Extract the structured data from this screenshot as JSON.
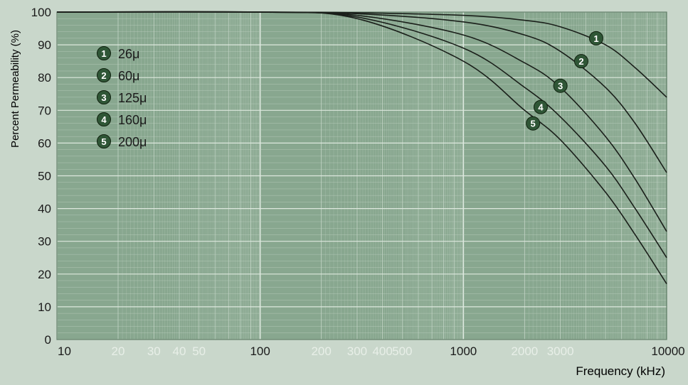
{
  "chart_data": {
    "type": "line",
    "title": "",
    "xlabel": "Frequency (kHz)",
    "ylabel": "Percent Permeability (%)",
    "x_scale": "log",
    "xlim": [
      10,
      10000
    ],
    "ylim": [
      0,
      100
    ],
    "x_ticks": [
      {
        "value": 10,
        "label": "10",
        "major": true
      },
      {
        "value": 20,
        "label": "20",
        "major": false
      },
      {
        "value": 30,
        "label": "30",
        "major": false
      },
      {
        "value": 40,
        "label": "40",
        "major": false
      },
      {
        "value": 50,
        "label": "50",
        "major": false
      },
      {
        "value": 100,
        "label": "100",
        "major": true
      },
      {
        "value": 200,
        "label": "200",
        "major": false
      },
      {
        "value": 300,
        "label": "300",
        "major": false
      },
      {
        "value": 400,
        "label": "400",
        "major": false
      },
      {
        "value": 500,
        "label": "500",
        "major": false
      },
      {
        "value": 1000,
        "label": "1000",
        "major": true
      },
      {
        "value": 2000,
        "label": "2000",
        "major": false
      },
      {
        "value": 3000,
        "label": "3000",
        "major": false
      },
      {
        "value": 10000,
        "label": "10000",
        "major": true
      }
    ],
    "y_ticks": [
      0,
      10,
      20,
      30,
      40,
      50,
      60,
      70,
      80,
      90,
      100
    ],
    "grid": true,
    "legend_position": "top-left",
    "series": [
      {
        "name": "26μ",
        "marker": "1",
        "x": [
          10,
          100,
          300,
          1000,
          2000,
          3000,
          5000,
          7000,
          10000
        ],
        "y": [
          100,
          100,
          99.8,
          99,
          97.5,
          95.5,
          90,
          83,
          74
        ]
      },
      {
        "name": "60μ",
        "marker": "2",
        "x": [
          10,
          100,
          300,
          1000,
          2000,
          3000,
          5000,
          7000,
          10000
        ],
        "y": [
          100,
          100,
          99.5,
          97,
          93,
          88,
          77,
          66,
          51
        ]
      },
      {
        "name": "125μ",
        "marker": "3",
        "x": [
          10,
          100,
          300,
          1000,
          2000,
          3000,
          5000,
          7000,
          10000
        ],
        "y": [
          100,
          100,
          99,
          93,
          84.5,
          77,
          62,
          49,
          33
        ]
      },
      {
        "name": "160μ",
        "marker": "4",
        "x": [
          10,
          100,
          300,
          1000,
          2000,
          3000,
          5000,
          7000,
          10000
        ],
        "y": [
          100,
          100,
          98.5,
          89,
          77,
          68,
          53,
          40,
          25
        ]
      },
      {
        "name": "200μ",
        "marker": "5",
        "x": [
          10,
          100,
          300,
          1000,
          2000,
          3000,
          5000,
          7000,
          10000
        ],
        "y": [
          100,
          100,
          98,
          85,
          70,
          61,
          45,
          32,
          17
        ]
      }
    ],
    "curve_labels": [
      {
        "marker": "1",
        "x": 4500,
        "y": 92
      },
      {
        "marker": "2",
        "x": 3800,
        "y": 85
      },
      {
        "marker": "3",
        "x": 3000,
        "y": 77.5
      },
      {
        "marker": "4",
        "x": 2400,
        "y": 71
      },
      {
        "marker": "5",
        "x": 2200,
        "y": 66
      }
    ],
    "colors": {
      "plot_background": "#88a78f",
      "page_background": "#c9d7cb",
      "major_grid": "#dde8de",
      "minor_grid": "#c4d5c7",
      "curve": "#1a1f1a",
      "marker_fill": "#2f5636",
      "marker_text": "#ffffff",
      "axis_text": "#1a1a1a",
      "minor_tick_text": "#e8efe8"
    }
  }
}
